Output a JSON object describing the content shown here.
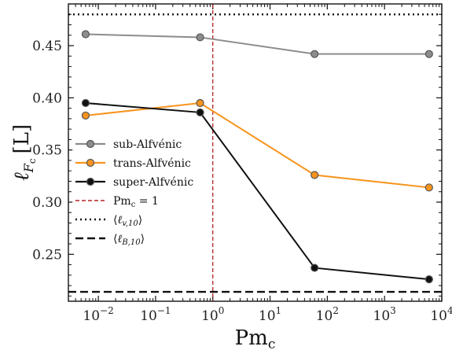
{
  "chart_data": {
    "type": "line",
    "xscale": "log",
    "xlim": [
      0.003,
      10000
    ],
    "ylim": [
      0.205,
      0.49
    ],
    "xlabel": "Pm",
    "xlabel_sub": "c",
    "ylabel": "ℓ",
    "ylabel_sub": "F",
    "ylabel_subsub": "c",
    "ylabel_unit": "[L]",
    "x_ticks": [
      0.01,
      0.1,
      1,
      10,
      100,
      1000,
      10000
    ],
    "x_tick_labels": [
      {
        "base": "10",
        "exp": "−2"
      },
      {
        "base": "10",
        "exp": "−1"
      },
      {
        "base": "10",
        "exp": "0"
      },
      {
        "base": "10",
        "exp": "1"
      },
      {
        "base": "10",
        "exp": "2"
      },
      {
        "base": "10",
        "exp": "3"
      },
      {
        "base": "10",
        "exp": "4"
      }
    ],
    "y_ticks": [
      0.25,
      0.3,
      0.35,
      0.4,
      0.45
    ],
    "y_tick_labels": [
      "0.25",
      "0.30",
      "0.35",
      "0.40",
      "0.45"
    ],
    "x": [
      0.006,
      0.6,
      60,
      6000
    ],
    "series": [
      {
        "name": "sub-Alfvénic",
        "color": "#8c8c8c",
        "values": [
          0.461,
          0.458,
          0.442,
          0.442
        ]
      },
      {
        "name": "trans-Alfvénic",
        "color": "#f7941d",
        "values": [
          0.383,
          0.395,
          0.326,
          0.314
        ]
      },
      {
        "name": "super-Alfvénic",
        "color": "#111111",
        "values": [
          0.395,
          0.386,
          0.237,
          0.226
        ]
      }
    ],
    "reference_lines": [
      {
        "name": "Pm_c = 1",
        "orientation": "vertical",
        "value": 1,
        "color": "#b22222",
        "style": "dashed"
      },
      {
        "name": "<l_v,10>",
        "orientation": "horizontal",
        "value": 0.48,
        "color": "#111111",
        "style": "dotted"
      },
      {
        "name": "<l_B,10>",
        "orientation": "horizontal",
        "value": 0.214,
        "color": "#111111",
        "style": "dashed"
      }
    ],
    "legend_position": "center-left",
    "legend_entries": {
      "vline": {
        "lhs": "Pm",
        "sub": "c",
        "rhs": "= 1"
      },
      "dotted": {
        "open": "⟨",
        "var": "ℓ",
        "sub": "v,10",
        "close": "⟩"
      },
      "dashed": {
        "open": "⟨",
        "var": "ℓ",
        "sub": "B,10",
        "close": "⟩"
      }
    }
  }
}
